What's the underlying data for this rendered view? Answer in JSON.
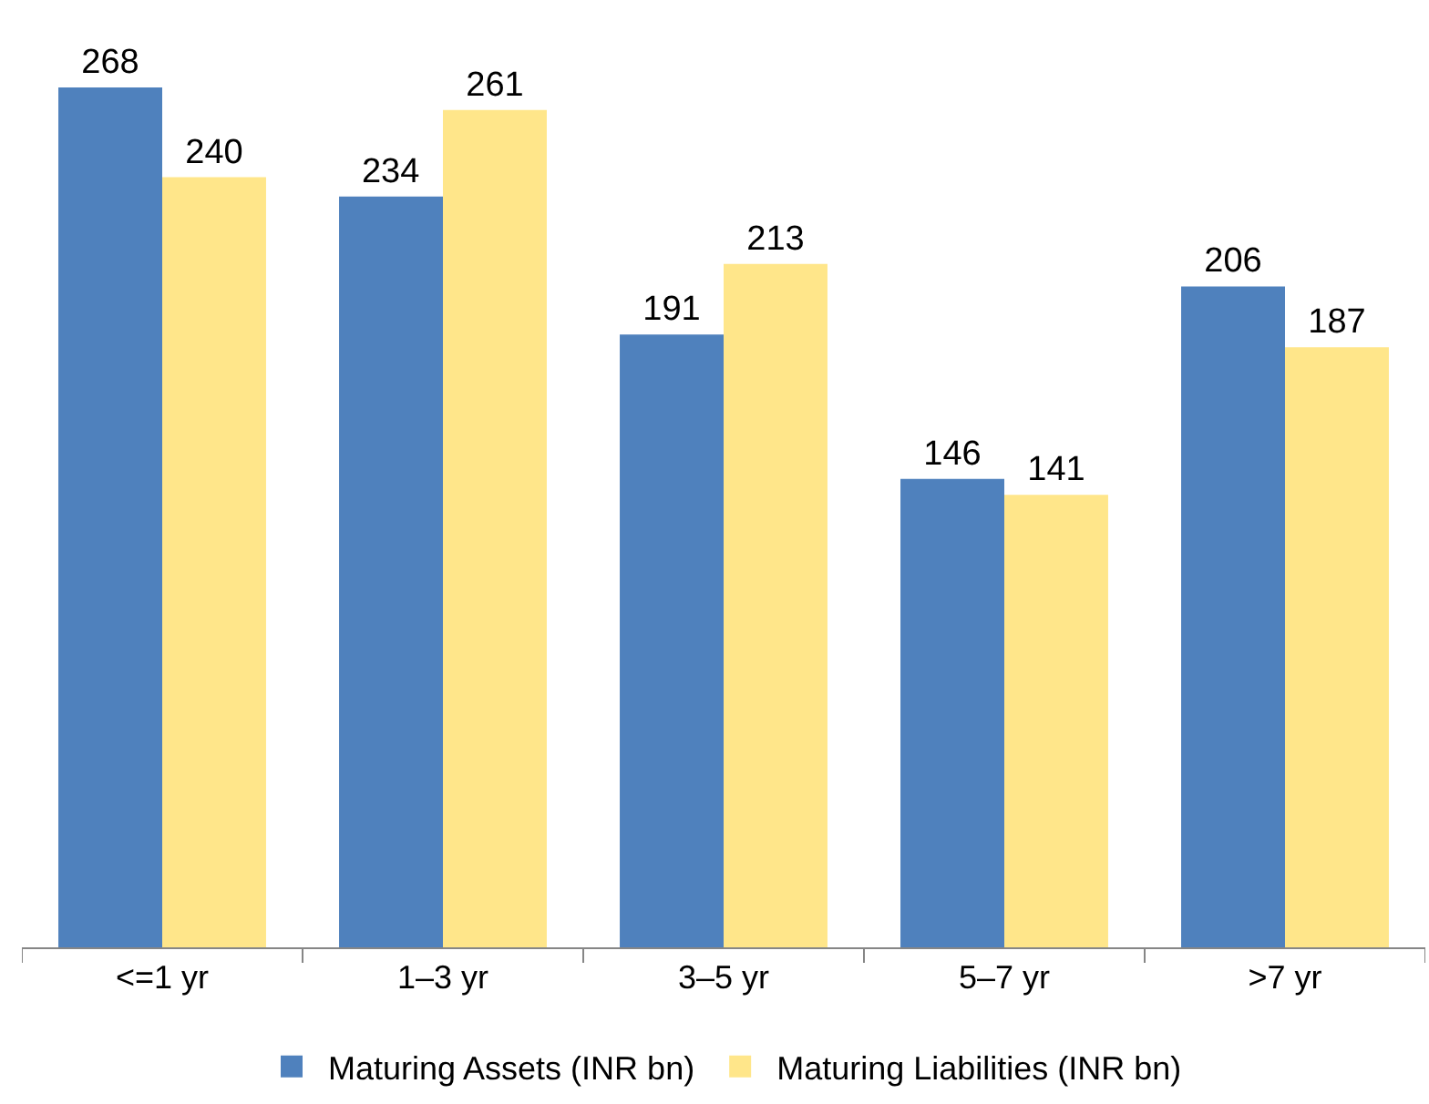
{
  "chart_data": {
    "type": "bar",
    "categories": [
      "<=1 yr",
      "1–3 yr",
      "3–5 yr",
      "5–7 yr",
      ">7 yr"
    ],
    "series": [
      {
        "name": "Maturing Assets (INR bn)",
        "color": "#4f81bd",
        "values": [
          268,
          234,
          191,
          146,
          206
        ]
      },
      {
        "name": "Maturing Liabilities (INR bn)",
        "color": "#ffe68a",
        "values": [
          240,
          261,
          213,
          141,
          187
        ]
      }
    ],
    "data_labels": true,
    "legend": "bottom",
    "tick_labels": "x"
  }
}
